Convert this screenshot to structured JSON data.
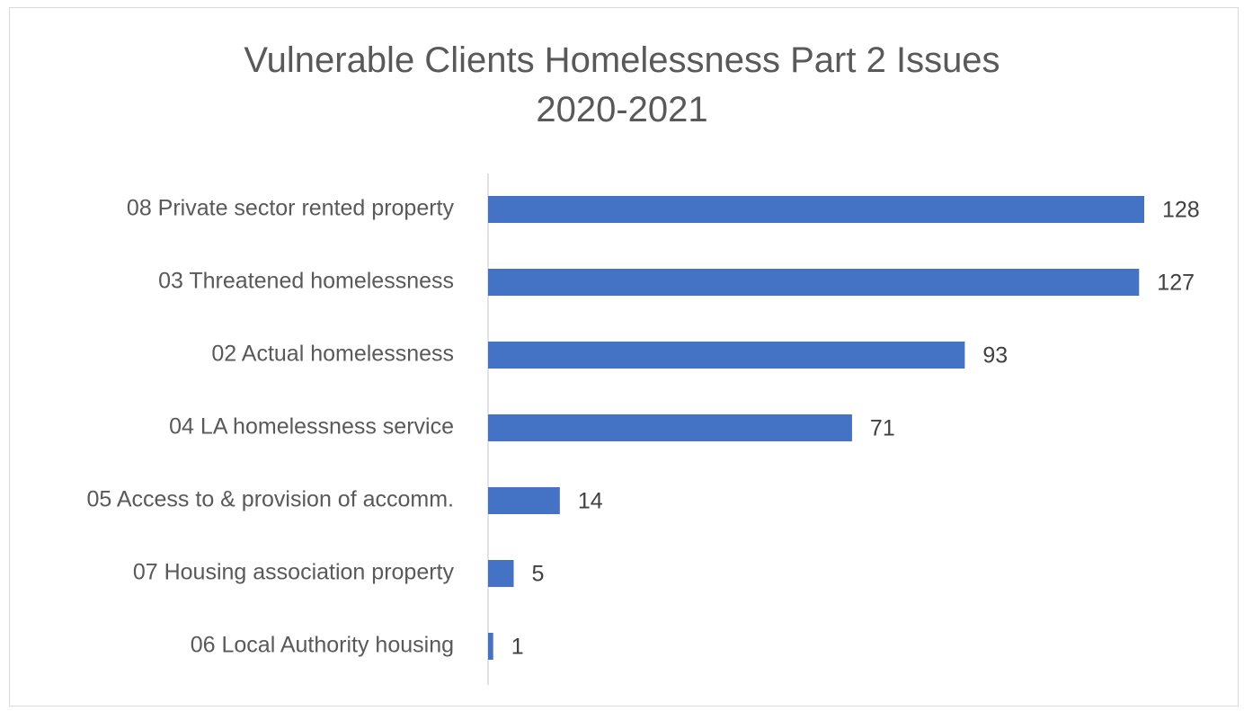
{
  "chart_data": {
    "type": "bar",
    "orientation": "horizontal",
    "title_lines": [
      "Vulnerable Clients Homelessness Part 2 Issues",
      "2020-2021"
    ],
    "categories": [
      "08 Private sector rented property",
      "03 Threatened homelessness",
      "02 Actual homelessness",
      "04 LA homelessness service",
      "05 Access to & provision of accomm.",
      "07 Housing association property",
      "06 Local Authority housing"
    ],
    "values": [
      128,
      127,
      93,
      71,
      14,
      5,
      1
    ],
    "xlim": [
      0,
      128
    ],
    "bar_color": "#4472c4",
    "grid": false,
    "legend": "none",
    "data_labels": true
  }
}
